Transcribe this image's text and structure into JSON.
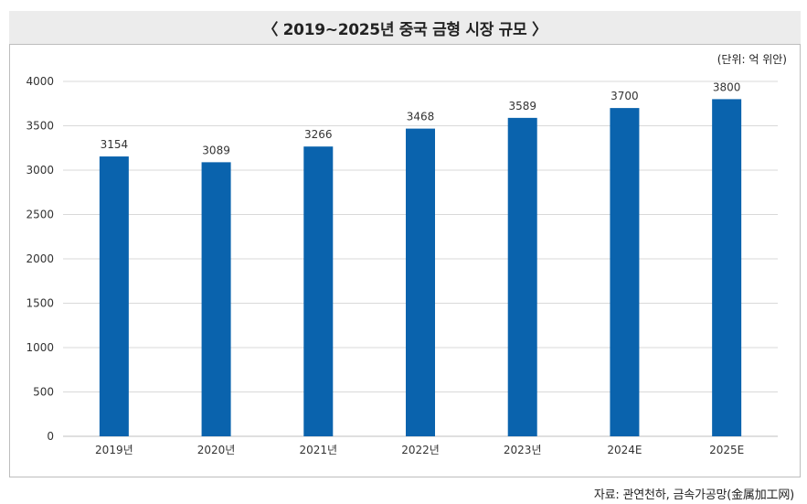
{
  "chart_data": {
    "type": "bar",
    "title": "〈 2019~2025년 중국 금형 시장 규모 〉",
    "unit": "(단위: 억 위안)",
    "categories": [
      "2019년",
      "2020년",
      "2021년",
      "2022년",
      "2023년",
      "2024E",
      "2025E"
    ],
    "series": [
      {
        "values": [
          3154,
          3089,
          3266,
          3468,
          3589,
          3700,
          3800
        ]
      }
    ],
    "ylim": [
      0,
      4000
    ],
    "yticks": [
      0,
      500,
      1000,
      1500,
      2000,
      2500,
      3000,
      3500,
      4000
    ],
    "grid": true,
    "data_labels": true,
    "bar_color": "#0a63ad",
    "xlabel": "",
    "ylabel": ""
  },
  "source": "자료: 관연천하, 금속가공망(金属加工网)"
}
